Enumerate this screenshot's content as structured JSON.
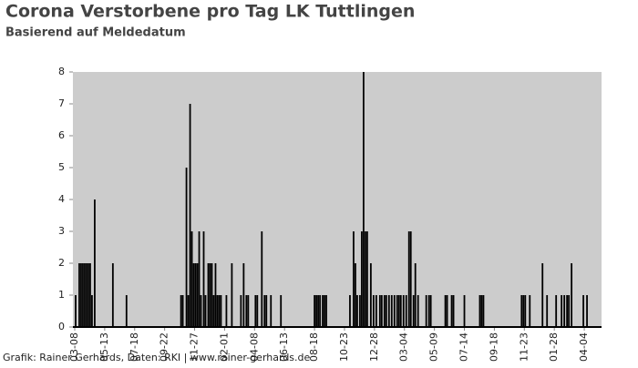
{
  "chart_data": {
    "type": "bar",
    "title": "Corona Verstorbene pro Tag LK Tuttlingen",
    "subtitle": "Basierend auf Meldedatum",
    "source": "Grafik: Rainer Gerhards, Daten: RKI | www.rainer-gerhards.de",
    "color": "#000000",
    "background": "#cccccc",
    "x": [
      2,
      10,
      14,
      18,
      22,
      26,
      30,
      34,
      38,
      44,
      84,
      114,
      234,
      238,
      246,
      250,
      254,
      258,
      262,
      266,
      270,
      274,
      278,
      284,
      288,
      294,
      298,
      302,
      306,
      310,
      314,
      318,
      322,
      334,
      346,
      366,
      372,
      378,
      382,
      398,
      402,
      412,
      418,
      422,
      432,
      454,
      528,
      532,
      536,
      540,
      546,
      550,
      554,
      606,
      614,
      618,
      622,
      628,
      632,
      636,
      640,
      644,
      652,
      658,
      664,
      672,
      676,
      682,
      686,
      692,
      698,
      704,
      710,
      714,
      718,
      724,
      730,
      736,
      740,
      746,
      750,
      756,
      774,
      780,
      784,
      816,
      820,
      830,
      834,
      858,
      892,
      896,
      900,
      984,
      988,
      992,
      1002,
      1030,
      1040,
      1060,
      1072,
      1078,
      1084,
      1088,
      1094,
      1120,
      1128
    ],
    "values": [
      1,
      2,
      2,
      2,
      2,
      2,
      2,
      2,
      1,
      4,
      2,
      1,
      1,
      1,
      5,
      1,
      7,
      3,
      2,
      2,
      2,
      3,
      1,
      3,
      1,
      2,
      2,
      2,
      1,
      2,
      1,
      1,
      1,
      1,
      2,
      1,
      2,
      1,
      1,
      1,
      1,
      3,
      1,
      1,
      1,
      1,
      1,
      1,
      1,
      1,
      1,
      1,
      1,
      1,
      3,
      2,
      1,
      1,
      3,
      8,
      3,
      3,
      2,
      1,
      1,
      1,
      1,
      1,
      1,
      1,
      1,
      1,
      1,
      1,
      1,
      1,
      1,
      3,
      3,
      1,
      2,
      1,
      1,
      1,
      1,
      1,
      1,
      1,
      1,
      1,
      1,
      1,
      1,
      1,
      1,
      1,
      1,
      2,
      1,
      1,
      1,
      1,
      1,
      1,
      2,
      1,
      1
    ],
    "xlim": [
      -4,
      1160
    ],
    "xticks": [
      {
        "value": 0,
        "label": "03-08"
      },
      {
        "value": 66,
        "label": "05-13"
      },
      {
        "value": 132,
        "label": "07-18"
      },
      {
        "value": 198,
        "label": "09-22"
      },
      {
        "value": 264,
        "label": "11-27"
      },
      {
        "value": 330,
        "label": "02-01"
      },
      {
        "value": 396,
        "label": "04-08"
      },
      {
        "value": 462,
        "label": "06-13"
      },
      {
        "value": 528,
        "label": "08-18"
      },
      {
        "value": 594,
        "label": "10-23"
      },
      {
        "value": 660,
        "label": "12-28"
      },
      {
        "value": 726,
        "label": "03-04"
      },
      {
        "value": 792,
        "label": "05-09"
      },
      {
        "value": 858,
        "label": "07-14"
      },
      {
        "value": 924,
        "label": "09-18"
      },
      {
        "value": 990,
        "label": "11-23"
      },
      {
        "value": 1056,
        "label": "01-28"
      },
      {
        "value": 1122,
        "label": "04-04"
      }
    ],
    "ylim": [
      0,
      8
    ],
    "yticks": [
      0,
      1,
      2,
      3,
      4,
      5,
      6,
      7,
      8
    ]
  }
}
